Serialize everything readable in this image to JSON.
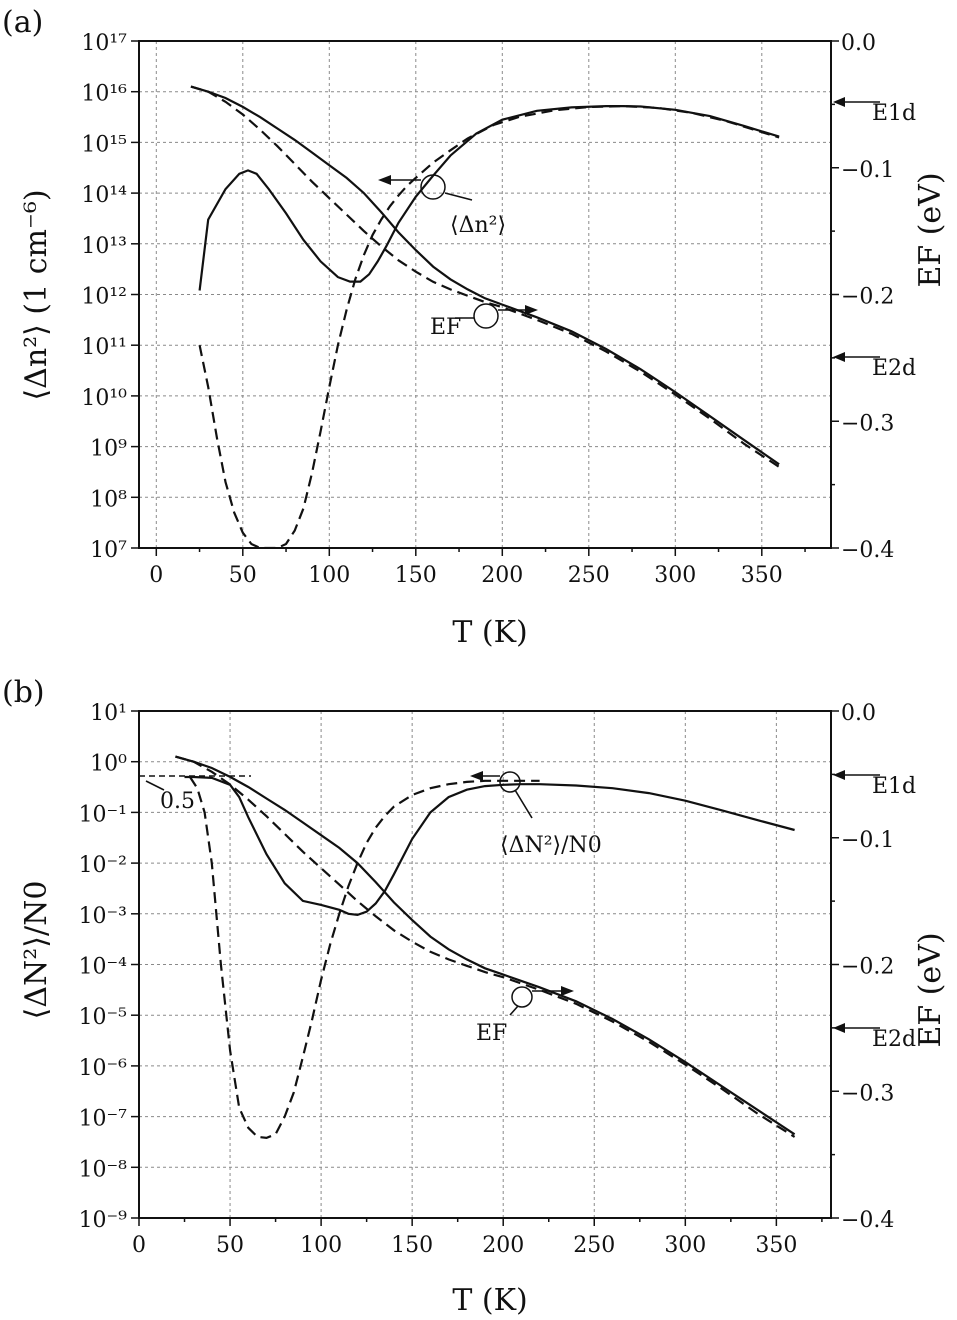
{
  "panel_a": {
    "label": "(a)",
    "left_axis_label": "⟨Δn²⟩ (1 cm⁻⁶)",
    "right_axis_label": "EF (eV)",
    "x_axis_label": "T (K)",
    "ann_dn": "⟨Δn²⟩",
    "ann_ef": "EF",
    "e1d": "E1d",
    "e2d": "E2d"
  },
  "panel_b": {
    "label": "(b)",
    "left_axis_label": "⟨ΔN²⟩/N0",
    "right_axis_label": "EF (eV)",
    "x_axis_label": "T (K)",
    "ann_dn": "⟨ΔN²⟩/N0",
    "ann_ef": "EF",
    "half_label": "0.5",
    "e1d": "E1d",
    "e2d": "E2d"
  },
  "chart_data": [
    {
      "type": "line",
      "panel": "(a)",
      "xlabel": "T (K)",
      "ylabel": "⟨Δn²⟩ (1 cm⁻⁶)",
      "y2label": "EF (eV)",
      "xlim": [
        -10,
        390
      ],
      "ylim": [
        10000000.0,
        1e+17
      ],
      "y2lim": [
        -0.4,
        0.0
      ],
      "yscale": "log",
      "grid": true,
      "xticks": [
        0,
        50,
        100,
        150,
        200,
        250,
        300,
        350
      ],
      "yticks_exp": [
        7,
        8,
        9,
        10,
        11,
        12,
        13,
        14,
        15,
        16,
        17
      ],
      "y2ticks": [
        "0.0",
        "−0.1",
        "−0.2",
        "−0.3",
        "−0.4"
      ],
      "levels": [
        {
          "name": "E1d",
          "value": -0.049
        },
        {
          "name": "E2d",
          "value": -0.249
        }
      ],
      "series": [
        {
          "axis": "left",
          "style": "solid",
          "x": [
            25,
            30,
            40,
            48,
            53,
            58,
            65,
            75,
            85,
            95,
            105,
            112,
            118,
            123,
            128,
            133,
            140,
            150,
            160,
            170,
            185,
            200,
            220,
            240,
            260,
            270,
            280,
            300,
            320,
            340,
            360
          ],
          "y": [
            1200000000000.0,
            30000000000000.0,
            120000000000000.0,
            240000000000000.0,
            280000000000000.0,
            240000000000000.0,
            120000000000000.0,
            40000000000000.0,
            12000000000000.0,
            4500000000000.0,
            2200000000000.0,
            1800000000000.0,
            1800000000000.0,
            2500000000000.0,
            4500000000000.0,
            9000000000000.0,
            26000000000000.0,
            85000000000000.0,
            220000000000000.0,
            550000000000000.0,
            1500000000000000.0,
            2800000000000000.0,
            4200000000000000.0,
            4900000000000000.0,
            5200000000000000.0,
            5200000000000000.0,
            5100000000000000.0,
            4400000000000000.0,
            3300000000000000.0,
            2100000000000000.0,
            1300000000000000.0
          ]
        },
        {
          "axis": "left",
          "style": "dashed",
          "x": [
            25,
            30,
            35,
            40,
            45,
            50,
            55,
            60,
            65,
            70,
            75,
            80,
            85,
            90,
            95,
            100,
            105,
            110,
            115,
            120,
            125,
            130,
            135,
            140,
            145,
            150,
            160,
            170,
            180,
            195,
            210,
            230,
            250,
            270,
            290,
            310,
            330,
            350,
            360
          ],
          "y": [
            100000000000.0,
            15000000000.0,
            1500000000.0,
            200000000.0,
            50000000.0,
            20000000.0,
            12000000.0,
            10000000.0,
            10000000.0,
            10000000.0,
            12000000.0,
            22000000.0,
            60000000.0,
            300000000.0,
            2000000000.0,
            15000000000.0,
            100000000000.0,
            500000000000.0,
            2000000000000.0,
            6000000000000.0,
            15000000000000.0,
            30000000000000.0,
            55000000000000.0,
            90000000000000.0,
            140000000000000.0,
            200000000000000.0,
            400000000000000.0,
            700000000000000.0,
            1200000000000000.0,
            2200000000000000.0,
            3200000000000000.0,
            4300000000000000.0,
            5000000000000000.0,
            5200000000000000.0,
            4800000000000000.0,
            3800000000000000.0,
            2600000000000000.0,
            1600000000000000.0,
            1250000000000000.0
          ]
        },
        {
          "axis": "right",
          "style": "solid",
          "x": [
            20,
            30,
            40,
            50,
            60,
            70,
            80,
            90,
            100,
            110,
            120,
            130,
            140,
            150,
            160,
            170,
            180,
            190,
            200,
            220,
            240,
            260,
            280,
            300,
            320,
            340,
            360
          ],
          "y": [
            -0.036,
            -0.04,
            -0.045,
            -0.052,
            -0.06,
            -0.069,
            -0.078,
            -0.088,
            -0.098,
            -0.108,
            -0.12,
            -0.135,
            -0.151,
            -0.165,
            -0.178,
            -0.188,
            -0.196,
            -0.203,
            -0.208,
            -0.218,
            -0.229,
            -0.243,
            -0.259,
            -0.277,
            -0.296,
            -0.315,
            -0.334
          ]
        },
        {
          "axis": "right",
          "style": "dashed",
          "x": [
            20,
            30,
            40,
            50,
            60,
            70,
            80,
            90,
            100,
            110,
            120,
            130,
            140,
            150,
            160,
            170,
            180,
            190,
            200,
            220,
            240,
            260,
            280,
            300,
            320,
            340,
            360
          ],
          "y": [
            -0.036,
            -0.04,
            -0.048,
            -0.058,
            -0.07,
            -0.083,
            -0.097,
            -0.111,
            -0.124,
            -0.137,
            -0.15,
            -0.162,
            -0.173,
            -0.182,
            -0.19,
            -0.196,
            -0.201,
            -0.206,
            -0.21,
            -0.22,
            -0.231,
            -0.245,
            -0.261,
            -0.279,
            -0.298,
            -0.318,
            -0.336
          ]
        }
      ]
    },
    {
      "type": "line",
      "panel": "(b)",
      "xlabel": "T (K)",
      "ylabel": "⟨ΔN²⟩/N0",
      "y2label": "EF (eV)",
      "xlim": [
        0,
        380
      ],
      "ylim": [
        1e-09,
        10.0
      ],
      "y2lim": [
        -0.4,
        0.0
      ],
      "yscale": "log",
      "grid": true,
      "xticks": [
        0,
        50,
        100,
        150,
        200,
        250,
        300,
        350
      ],
      "yticks_exp": [
        -9,
        -8,
        -7,
        -6,
        -5,
        -4,
        -3,
        -2,
        -1,
        0,
        1
      ],
      "y2ticks": [
        "0.0",
        "−0.1",
        "−0.2",
        "−0.3",
        "−0.4"
      ],
      "levels": [
        {
          "name": "E1d",
          "value": -0.049
        },
        {
          "name": "E2d",
          "value": -0.249
        }
      ],
      "reference_line": {
        "label": "0.5",
        "value": 0.5
      },
      "series": [
        {
          "axis": "left",
          "style": "solid",
          "x": [
            25,
            30,
            40,
            50,
            55,
            60,
            70,
            80,
            90,
            100,
            110,
            115,
            120,
            125,
            130,
            135,
            140,
            150,
            160,
            170,
            180,
            190,
            200,
            210,
            220,
            240,
            260,
            280,
            300,
            320,
            340,
            360
          ],
          "y": [
            0.5,
            0.5,
            0.48,
            0.35,
            0.2,
            0.08,
            0.015,
            0.004,
            0.0018,
            0.0015,
            0.0012,
            0.001,
            0.00095,
            0.0011,
            0.0016,
            0.0028,
            0.006,
            0.03,
            0.1,
            0.2,
            0.28,
            0.33,
            0.35,
            0.36,
            0.36,
            0.34,
            0.3,
            0.24,
            0.17,
            0.11,
            0.07,
            0.045
          ]
        },
        {
          "axis": "left",
          "style": "dashed",
          "x": [
            28,
            32,
            36,
            40,
            45,
            50,
            55,
            60,
            65,
            70,
            75,
            80,
            85,
            90,
            95,
            100,
            105,
            110,
            115,
            120,
            125,
            130,
            135,
            140,
            150,
            160,
            170,
            180,
            190,
            200,
            210,
            220
          ],
          "y": [
            0.5,
            0.3,
            0.1,
            0.01,
            0.0001,
            2e-06,
            1.5e-07,
            6e-08,
            4e-08,
            3.8e-08,
            4.5e-08,
            1e-07,
            3e-07,
            1.5e-06,
            8e-06,
            5e-05,
            0.00025,
            0.001,
            0.0035,
            0.01,
            0.025,
            0.05,
            0.085,
            0.13,
            0.22,
            0.3,
            0.36,
            0.4,
            0.42,
            0.42,
            0.42,
            0.42
          ]
        },
        {
          "axis": "right",
          "style": "solid",
          "x": [
            20,
            30,
            40,
            50,
            60,
            70,
            80,
            90,
            100,
            110,
            120,
            130,
            140,
            150,
            160,
            170,
            180,
            190,
            200,
            220,
            240,
            260,
            280,
            300,
            320,
            340,
            360
          ],
          "y": [
            -0.036,
            -0.04,
            -0.045,
            -0.052,
            -0.06,
            -0.069,
            -0.078,
            -0.088,
            -0.098,
            -0.108,
            -0.12,
            -0.135,
            -0.151,
            -0.165,
            -0.178,
            -0.188,
            -0.196,
            -0.203,
            -0.208,
            -0.218,
            -0.229,
            -0.243,
            -0.259,
            -0.277,
            -0.296,
            -0.315,
            -0.334
          ]
        },
        {
          "axis": "right",
          "style": "dashed",
          "x": [
            20,
            30,
            40,
            50,
            60,
            70,
            80,
            90,
            100,
            110,
            120,
            130,
            140,
            150,
            160,
            170,
            180,
            190,
            200,
            220,
            240,
            260,
            280,
            300,
            320,
            340,
            360
          ],
          "y": [
            -0.036,
            -0.04,
            -0.048,
            -0.058,
            -0.07,
            -0.083,
            -0.097,
            -0.111,
            -0.124,
            -0.137,
            -0.15,
            -0.162,
            -0.173,
            -0.182,
            -0.19,
            -0.196,
            -0.201,
            -0.206,
            -0.21,
            -0.22,
            -0.231,
            -0.245,
            -0.261,
            -0.279,
            -0.298,
            -0.318,
            -0.336
          ]
        }
      ]
    }
  ]
}
